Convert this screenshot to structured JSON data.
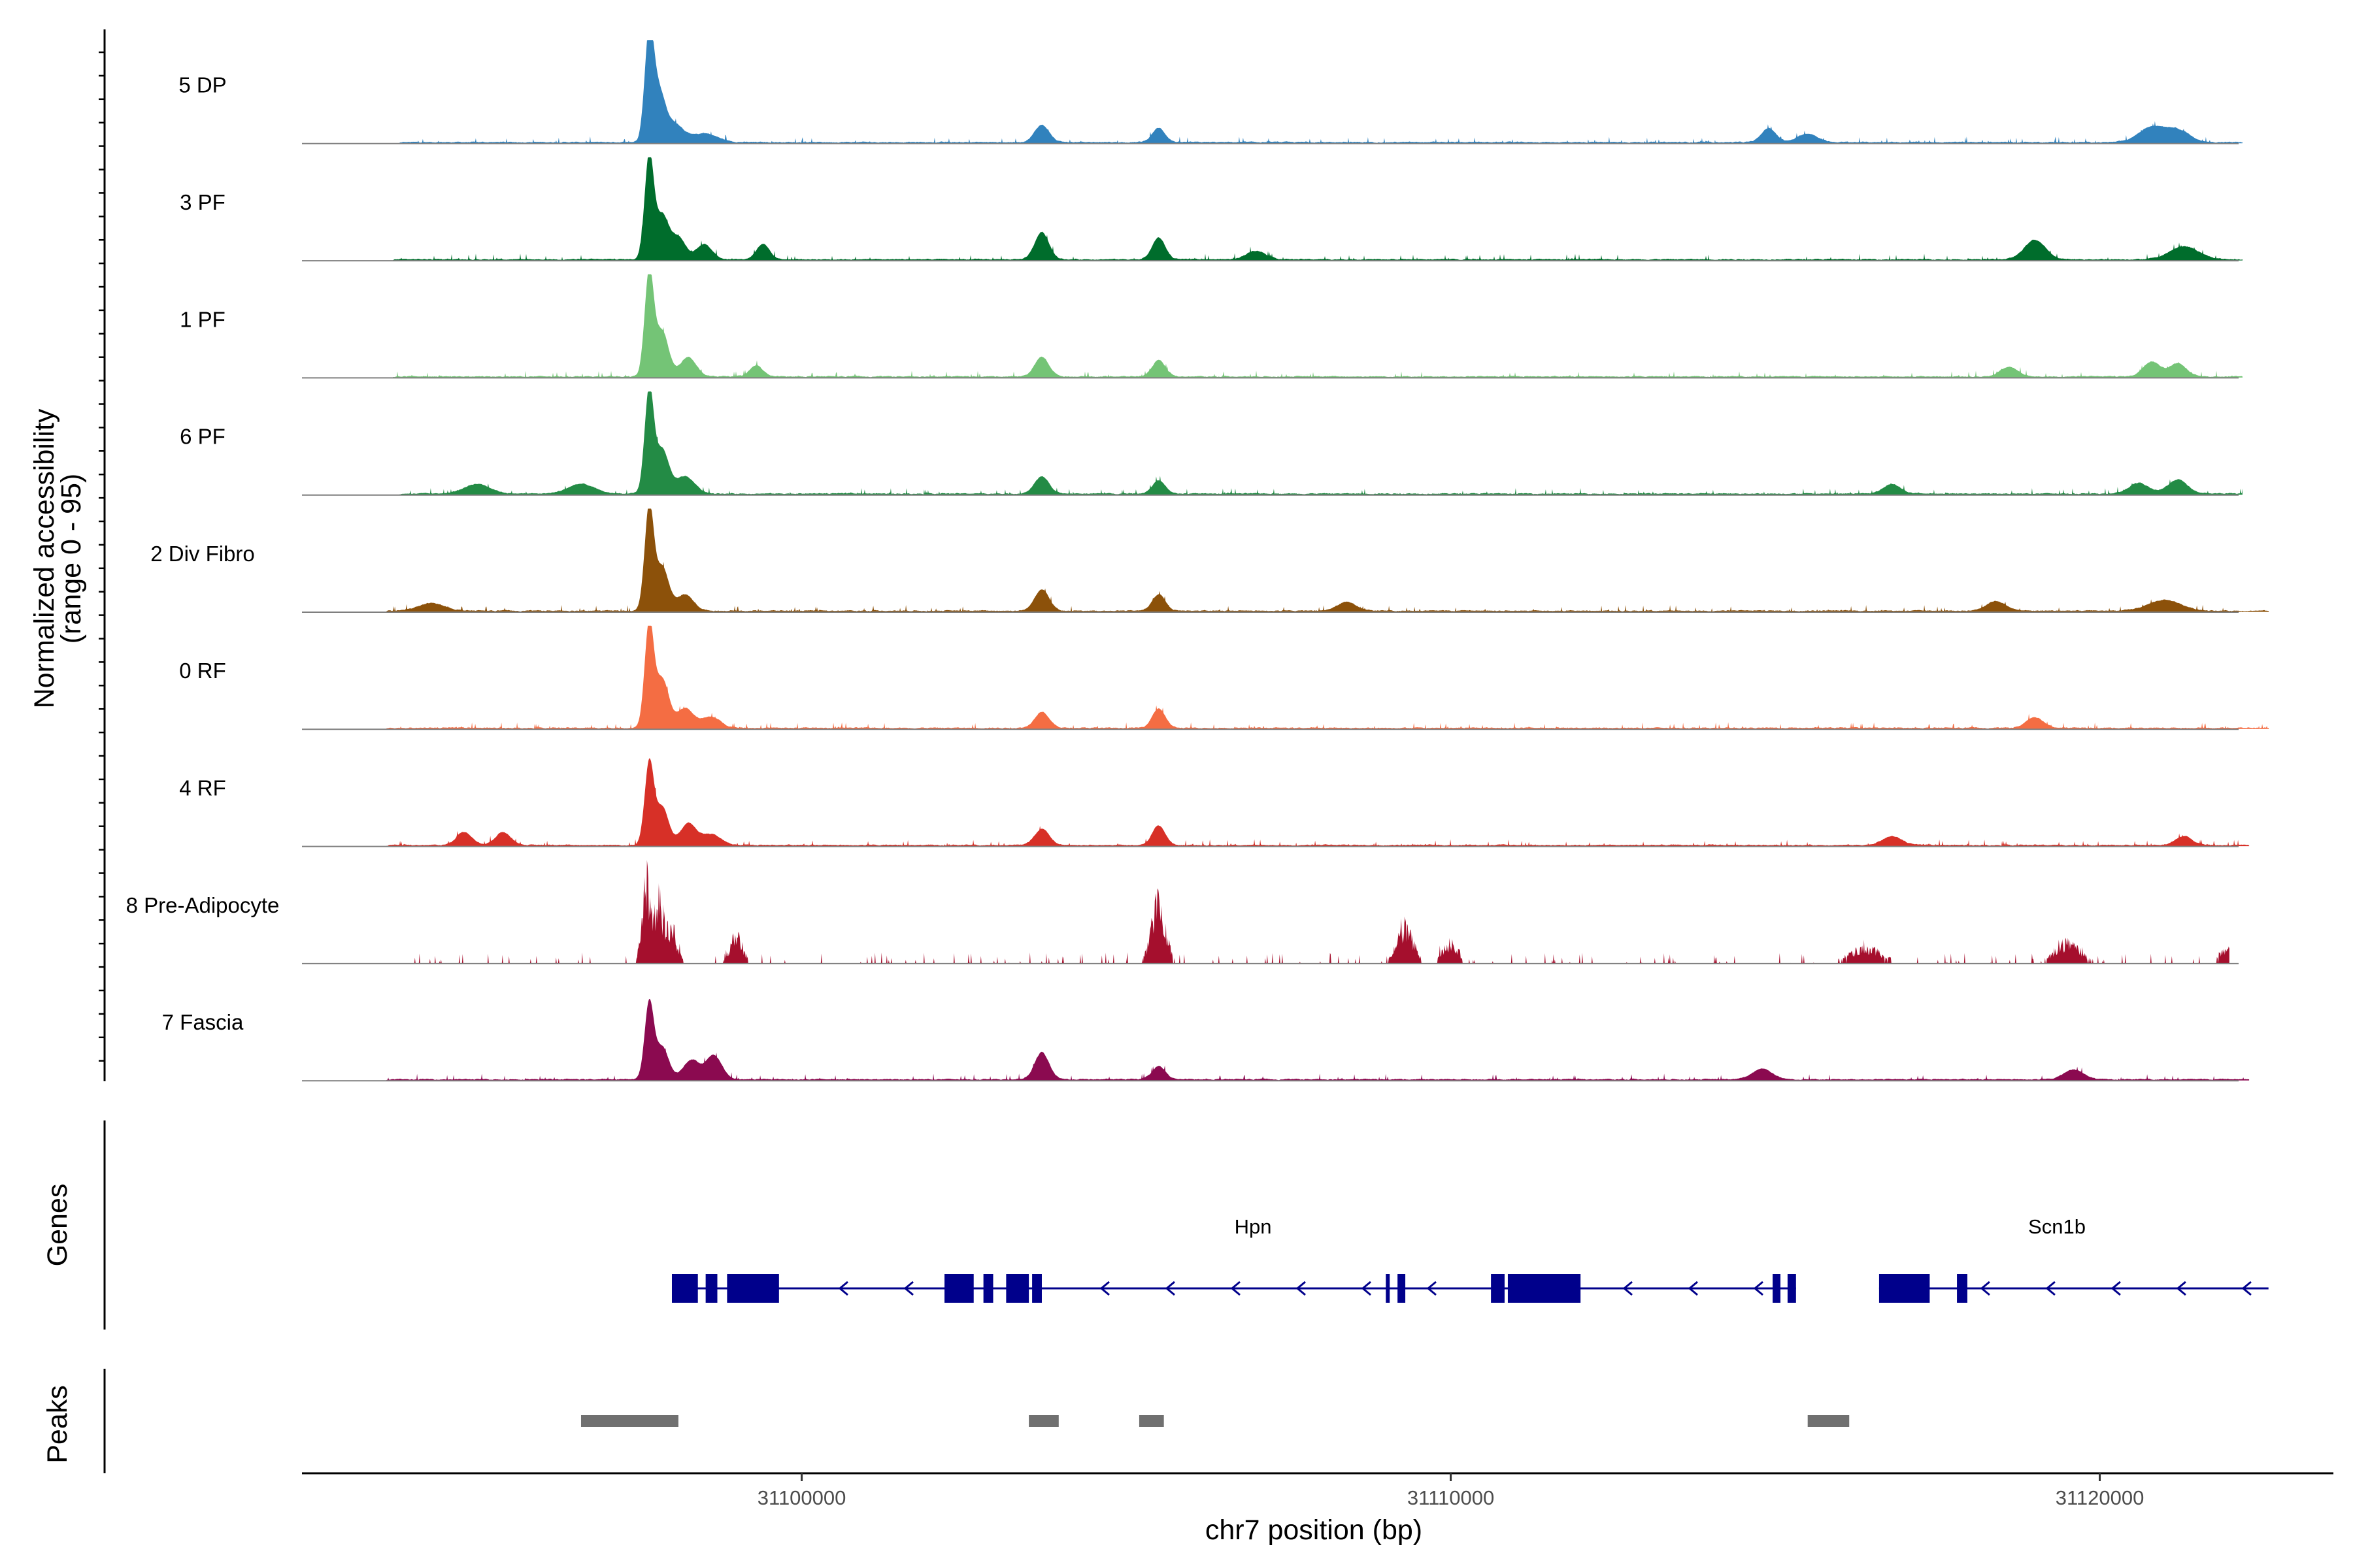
{
  "chart_data": {
    "type": "area",
    "title": "",
    "xlabel": "chr7 position (bp)",
    "ylabel": "Normalized accessibility",
    "ylabel_sub": "(range 0 - 95)",
    "x_range": [
      31092300,
      31123600
    ],
    "x_ticks": [
      31100000,
      31110000,
      31120000
    ],
    "x_tick_labels": [
      "31100000",
      "31110000",
      "31120000"
    ],
    "y_range": [
      0,
      95
    ],
    "panel_titles": {
      "genes": "Genes",
      "peaks": "Peaks"
    },
    "series": [
      {
        "name": "5 DP",
        "color": "#3182bd",
        "extent": [
          31093800,
          31122200
        ],
        "peaks": [
          [
            31097650,
            95,
            70
          ],
          [
            31097800,
            45,
            100
          ],
          [
            31098050,
            16,
            130
          ],
          [
            31098500,
            8,
            200
          ],
          [
            31103700,
            16,
            110
          ],
          [
            31105500,
            13,
            100
          ],
          [
            31114900,
            13,
            110
          ],
          [
            31115500,
            8,
            150
          ],
          [
            31120800,
            14,
            200
          ],
          [
            31121200,
            11,
            180
          ]
        ]
      },
      {
        "name": "3 PF",
        "color": "#006d2c",
        "extent": [
          31093700,
          31122200
        ],
        "peaks": [
          [
            31097650,
            95,
            70
          ],
          [
            31097850,
            40,
            100
          ],
          [
            31098100,
            20,
            110
          ],
          [
            31098500,
            14,
            120
          ],
          [
            31099400,
            14,
            100
          ],
          [
            31103700,
            25,
            110
          ],
          [
            31105500,
            20,
            100
          ],
          [
            31107000,
            8,
            150
          ],
          [
            31119000,
            18,
            160
          ],
          [
            31121300,
            12,
            220
          ]
        ]
      },
      {
        "name": "1 PF",
        "color": "#74c476",
        "extent": [
          31093700,
          31122200
        ],
        "peaks": [
          [
            31097650,
            95,
            70
          ],
          [
            31097850,
            42,
            100
          ],
          [
            31098250,
            18,
            120
          ],
          [
            31099300,
            10,
            100
          ],
          [
            31103700,
            18,
            110
          ],
          [
            31105500,
            15,
            100
          ],
          [
            31118600,
            9,
            130
          ],
          [
            31120800,
            14,
            130
          ],
          [
            31121200,
            12,
            130
          ]
        ]
      },
      {
        "name": "6 PF",
        "color": "#238b45",
        "extent": [
          31093800,
          31122200
        ],
        "peaks": [
          [
            31097650,
            95,
            70
          ],
          [
            31097850,
            40,
            100
          ],
          [
            31098200,
            16,
            150
          ],
          [
            31095000,
            9,
            200
          ],
          [
            31096600,
            9,
            200
          ],
          [
            31103700,
            16,
            110
          ],
          [
            31105500,
            12,
            100
          ],
          [
            31116800,
            9,
            130
          ],
          [
            31120600,
            10,
            150
          ],
          [
            31121200,
            13,
            150
          ]
        ]
      },
      {
        "name": "2 Div Fibro",
        "color": "#8c510a",
        "extent": [
          31093600,
          31122600
        ],
        "peaks": [
          [
            31097650,
            95,
            70
          ],
          [
            31097850,
            40,
            100
          ],
          [
            31098200,
            15,
            130
          ],
          [
            31094300,
            7,
            200
          ],
          [
            31103700,
            20,
            110
          ],
          [
            31105500,
            15,
            100
          ],
          [
            31108400,
            8,
            150
          ],
          [
            31118400,
            9,
            150
          ],
          [
            31121000,
            10,
            250
          ]
        ]
      },
      {
        "name": "0 RF",
        "color": "#f46d43",
        "extent": [
          31093600,
          31122600
        ],
        "peaks": [
          [
            31097650,
            95,
            70
          ],
          [
            31097850,
            45,
            100
          ],
          [
            31098200,
            18,
            130
          ],
          [
            31098600,
            10,
            150
          ],
          [
            31103700,
            15,
            110
          ],
          [
            31105500,
            18,
            100
          ],
          [
            31119000,
            10,
            130
          ]
        ]
      },
      {
        "name": "4 RF",
        "color": "#d73027",
        "extent": [
          31093600,
          31122300
        ],
        "peaks": [
          [
            31097650,
            75,
            70
          ],
          [
            31097850,
            35,
            100
          ],
          [
            31098250,
            20,
            120
          ],
          [
            31098600,
            10,
            150
          ],
          [
            31094800,
            12,
            120
          ],
          [
            31095400,
            12,
            120
          ],
          [
            31103700,
            15,
            110
          ],
          [
            31105500,
            18,
            100
          ],
          [
            31116800,
            8,
            150
          ],
          [
            31121300,
            8,
            130
          ]
        ]
      },
      {
        "name": "8 Pre-Adipocyte",
        "color": "#a50f2d",
        "extent": [
          31094000,
          31122000
        ],
        "peaks": [
          [
            31097600,
            85,
            60
          ],
          [
            31097800,
            60,
            70
          ],
          [
            31098000,
            35,
            80
          ],
          [
            31099000,
            30,
            90
          ],
          [
            31105500,
            58,
            110
          ],
          [
            31109300,
            38,
            120
          ],
          [
            31110000,
            20,
            120
          ],
          [
            31116400,
            15,
            250
          ],
          [
            31119500,
            20,
            200
          ],
          [
            31121950,
            15,
            100
          ]
        ]
      },
      {
        "name": "7 Fascia",
        "color": "#8b0a50",
        "extent": [
          31093600,
          31122300
        ],
        "peaks": [
          [
            31097650,
            70,
            70
          ],
          [
            31097850,
            30,
            100
          ],
          [
            31098300,
            18,
            130
          ],
          [
            31098650,
            22,
            120
          ],
          [
            31103700,
            25,
            110
          ],
          [
            31105500,
            12,
            100
          ],
          [
            31114800,
            10,
            150
          ],
          [
            31119600,
            9,
            150
          ]
        ]
      }
    ],
    "genes": [
      {
        "name": "Hpn",
        "strand": "-",
        "color": "#00008b",
        "start": 31098000,
        "end": 31115320,
        "exons": [
          [
            31098000,
            31098400
          ],
          [
            31098520,
            31098700
          ],
          [
            31098850,
            31099650
          ],
          [
            31102200,
            31102650
          ],
          [
            31102800,
            31102950
          ],
          [
            31103150,
            31103500
          ],
          [
            31103550,
            31103700
          ],
          [
            31109000,
            31109060
          ],
          [
            31109180,
            31109300
          ],
          [
            31110620,
            31110830
          ],
          [
            31110880,
            31112000
          ],
          [
            31114960,
            31115080
          ],
          [
            31115190,
            31115320
          ]
        ]
      },
      {
        "name": "Scn1b",
        "strand": "-",
        "color": "#00008b",
        "start": 31116600,
        "end": 31122600,
        "exons": [
          [
            31116600,
            31117380
          ],
          [
            31117800,
            31117960
          ]
        ]
      }
    ],
    "peak_regions": [
      [
        31096600,
        31098100
      ],
      [
        31103500,
        31103960
      ],
      [
        31105200,
        31105580
      ],
      [
        31115500,
        31116140
      ]
    ],
    "peak_color": "#707070"
  }
}
